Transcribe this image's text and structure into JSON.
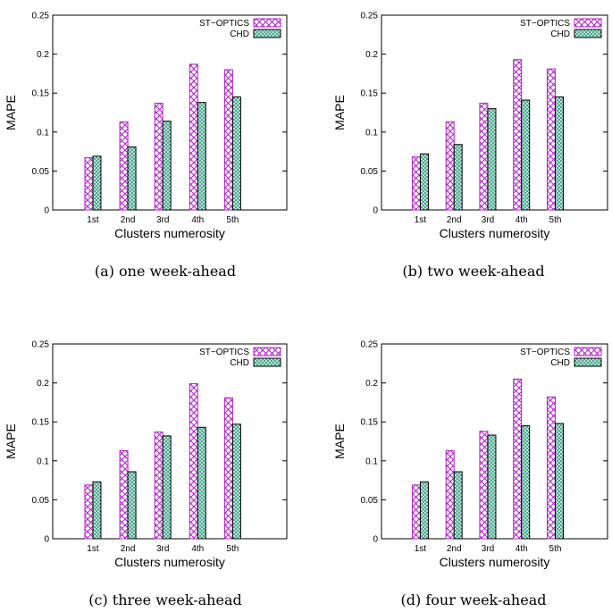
{
  "colors": {
    "st_optics": "#b01ec8",
    "chd": "#138a6e",
    "chd_fill": "#d8f0e6"
  },
  "chart_data": [
    {
      "type": "bar",
      "caption": "(a) one week-ahead",
      "categories": [
        "1st",
        "2nd",
        "3rd",
        "4th",
        "5th"
      ],
      "xlabel": "Clusters numerosity",
      "ylabel": "MAPE",
      "ylim": [
        0,
        0.25
      ],
      "yticks": [
        "0",
        "0.05",
        "0.1",
        "0.15",
        "0.2",
        "0.25"
      ],
      "legend_position": "top-right",
      "grid": false,
      "series": [
        {
          "name": "ST−OPTICS",
          "values": [
            0.067,
            0.113,
            0.137,
            0.187,
            0.18
          ]
        },
        {
          "name": "CHD",
          "values": [
            0.069,
            0.081,
            0.114,
            0.138,
            0.145
          ]
        }
      ]
    },
    {
      "type": "bar",
      "caption": "(b) two week-ahead",
      "categories": [
        "1st",
        "2nd",
        "3rd",
        "4th",
        "5th"
      ],
      "xlabel": "Clusters numerosity",
      "ylabel": "MAPE",
      "ylim": [
        0,
        0.25
      ],
      "yticks": [
        "0",
        "0.05",
        "0.1",
        "0.15",
        "0.2",
        "0.25"
      ],
      "legend_position": "top-right",
      "grid": false,
      "series": [
        {
          "name": "ST−OPTICS",
          "values": [
            0.068,
            0.113,
            0.137,
            0.193,
            0.181
          ]
        },
        {
          "name": "CHD",
          "values": [
            0.072,
            0.084,
            0.13,
            0.141,
            0.145
          ]
        }
      ]
    },
    {
      "type": "bar",
      "caption": "(c) three week-ahead",
      "categories": [
        "1st",
        "2nd",
        "3rd",
        "4th",
        "5th"
      ],
      "xlabel": "Clusters numerosity",
      "ylabel": "MAPE",
      "ylim": [
        0,
        0.25
      ],
      "yticks": [
        "0",
        "0.05",
        "0.1",
        "0.15",
        "0.2",
        "0.25"
      ],
      "legend_position": "top-right",
      "grid": false,
      "series": [
        {
          "name": "ST−OPTICS",
          "values": [
            0.069,
            0.113,
            0.137,
            0.199,
            0.181
          ]
        },
        {
          "name": "CHD",
          "values": [
            0.073,
            0.086,
            0.132,
            0.143,
            0.147
          ]
        }
      ]
    },
    {
      "type": "bar",
      "caption": "(d) four week-ahead",
      "categories": [
        "1st",
        "2nd",
        "3rd",
        "4th",
        "5th"
      ],
      "xlabel": "Clusters numerosity",
      "ylabel": "MAPE",
      "ylim": [
        0,
        0.25
      ],
      "yticks": [
        "0",
        "0.05",
        "0.1",
        "0.15",
        "0.2",
        "0.25"
      ],
      "legend_position": "top-right",
      "grid": false,
      "series": [
        {
          "name": "ST−OPTICS",
          "values": [
            0.069,
            0.113,
            0.138,
            0.205,
            0.182
          ]
        },
        {
          "name": "CHD",
          "values": [
            0.073,
            0.086,
            0.133,
            0.145,
            0.148
          ]
        }
      ]
    }
  ]
}
